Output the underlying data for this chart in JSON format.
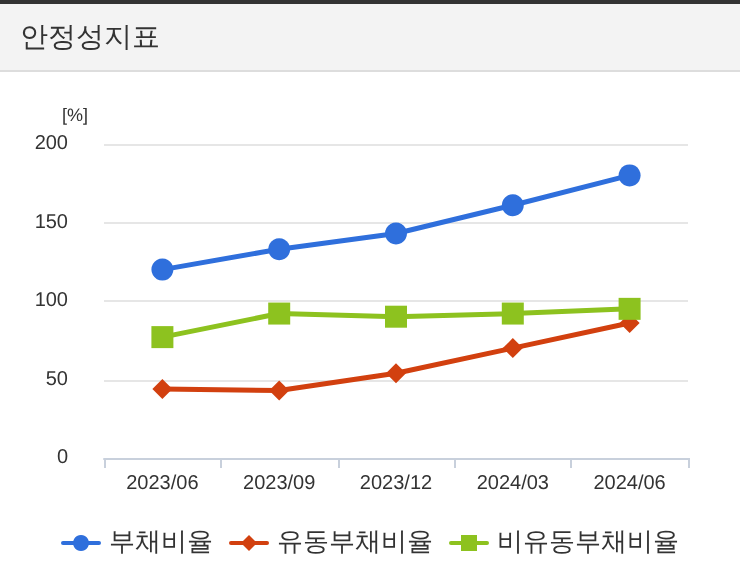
{
  "chart_data": {
    "type": "line",
    "title": "안정성지표",
    "ylabel": "[%]",
    "categories": [
      "2023/06",
      "2023/09",
      "2023/12",
      "2024/03",
      "2024/06"
    ],
    "series": [
      {
        "name": "부채비율",
        "color": "#2f6fdc",
        "marker": "circle",
        "values": [
          120,
          133,
          143,
          161,
          180
        ]
      },
      {
        "name": "유동부채비율",
        "color": "#d2400f",
        "marker": "diamond",
        "values": [
          44,
          43,
          54,
          70,
          86
        ]
      },
      {
        "name": "비유동부채비율",
        "color": "#8dc21f",
        "marker": "square",
        "values": [
          77,
          92,
          90,
          92,
          95
        ]
      }
    ],
    "ylim": [
      0,
      200
    ],
    "yticks": [
      0,
      50,
      100,
      150,
      200
    ],
    "grid": "y",
    "legend": "bottom",
    "line_style": "solid"
  }
}
